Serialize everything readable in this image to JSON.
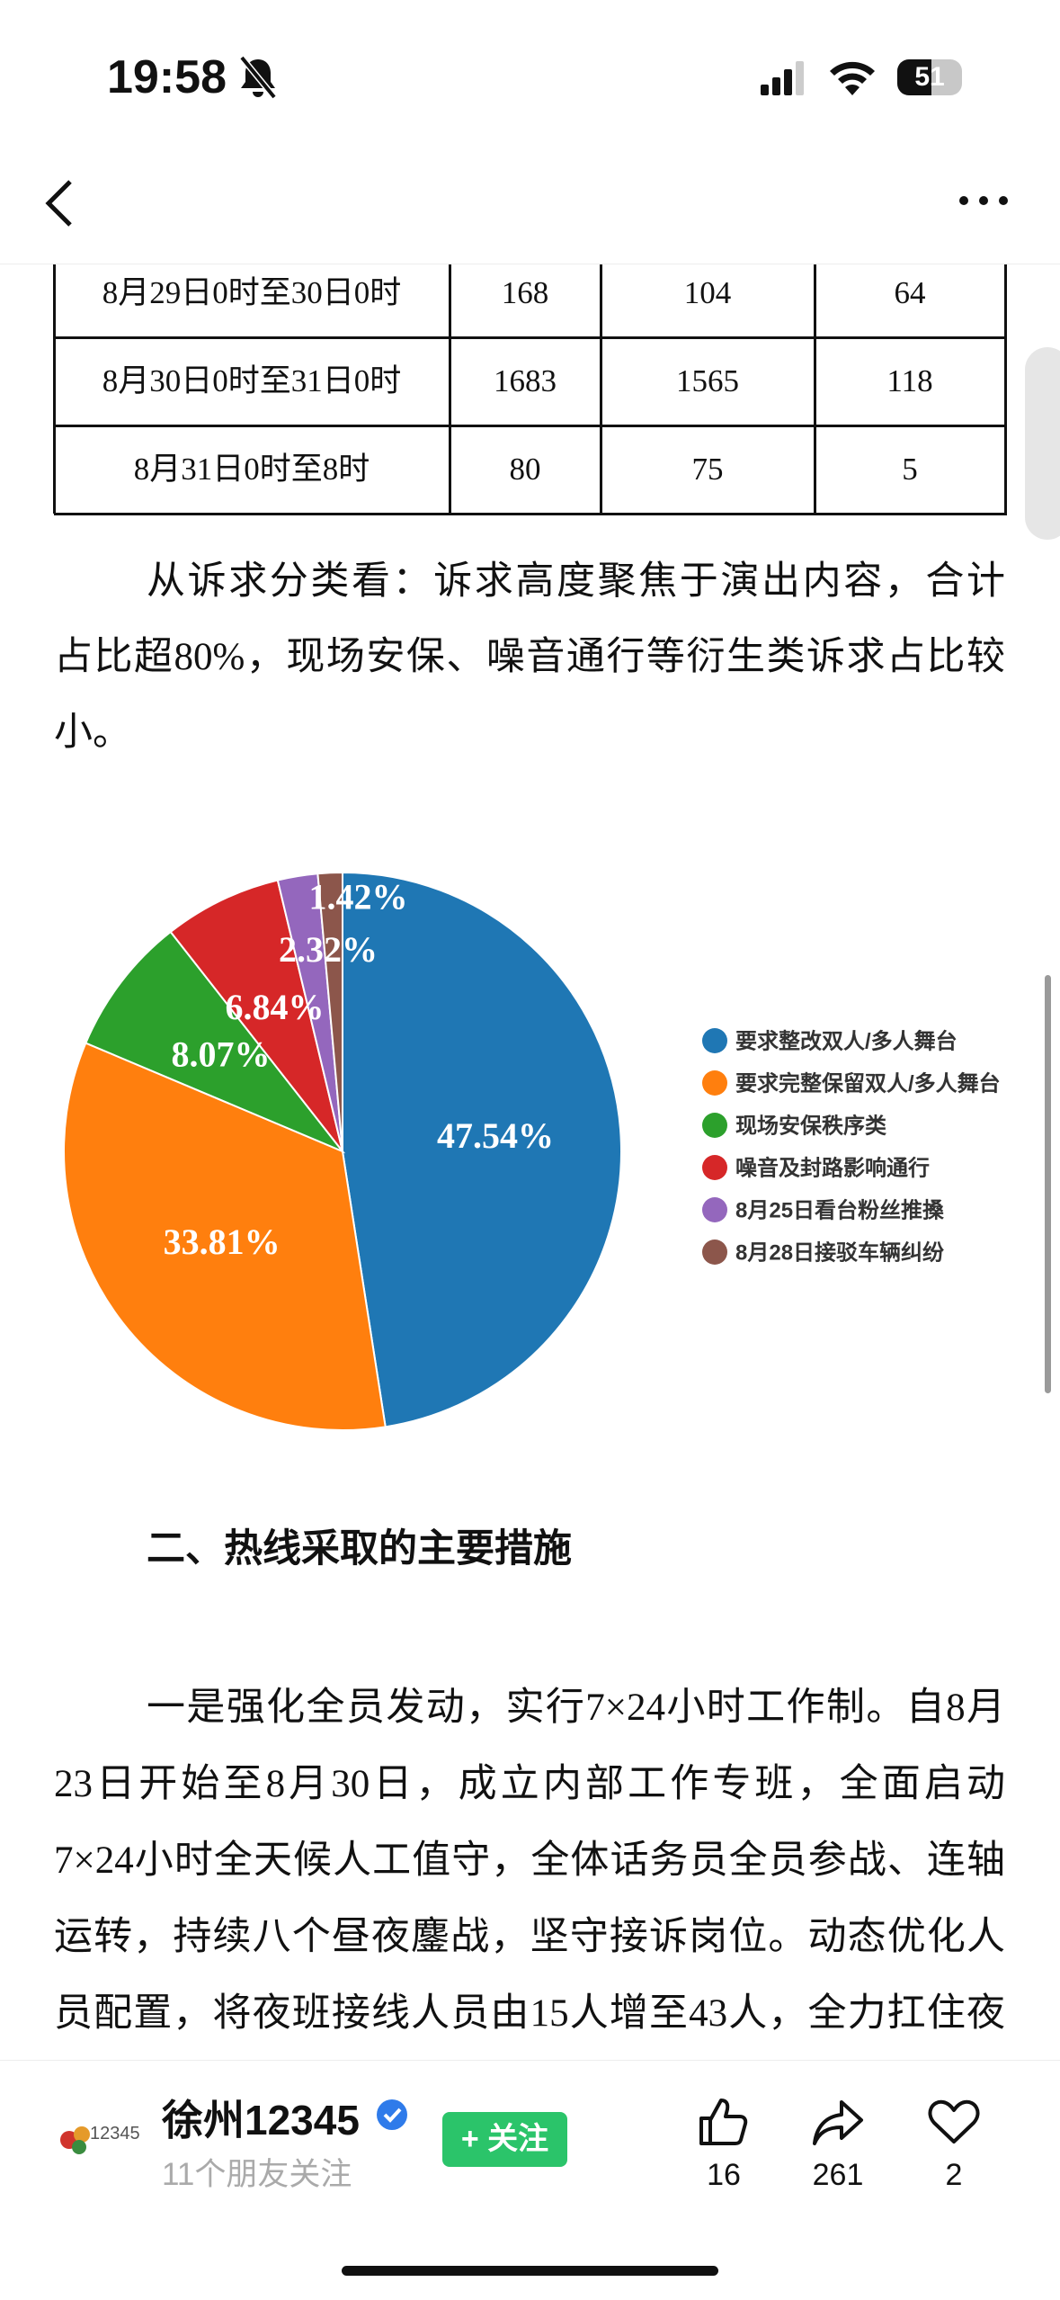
{
  "status_bar": {
    "time": "19:58",
    "battery": "51"
  },
  "table": {
    "rows": [
      [
        "8月29日0时至30日0时",
        "168",
        "104",
        "64"
      ],
      [
        "8月30日0时至31日0时",
        "1683",
        "1565",
        "118"
      ],
      [
        "8月31日0时至8时",
        "80",
        "75",
        "5"
      ]
    ]
  },
  "paragraph_1": [
    "从诉求分类看：诉求高度聚焦于演出内容，合计",
    "占比超80%，现场安保、噪音通行等衍生类诉求占比较",
    "小。"
  ],
  "chart": {
    "type": "pie",
    "categories": [
      "要求整改双人/多人舞台",
      "要求完整保留双人/多人舞台",
      "现场安保秩序类",
      "噪音及封路影响通行",
      "8月25日看台粉丝推搡",
      "8月28日接驳车辆纠纷"
    ],
    "values": [
      47.54,
      33.81,
      8.07,
      6.84,
      2.32,
      1.42
    ],
    "value_labels": [
      "47.54%",
      "33.81%",
      "8.07%",
      "6.84%",
      "2.32%",
      "1.42%"
    ],
    "colors": [
      "#1f77b4",
      "#ff7f0e",
      "#2ca02c",
      "#d62728",
      "#9467bd",
      "#8c564b"
    ]
  },
  "heading": "二、热线采取的主要措施",
  "paragraph_2": [
    "一是强化全员发动，实行7×24小时工作制。自8月",
    "23日开始至8月30日，成立内部工作专班，全面启动",
    "7×24小时全天候人工值守，全体话务员全员参战、连轴",
    "运转，持续八个昼夜鏖战，坚守接诉岗位。动态优化人",
    "员配置，将夜班接线人员由15人增至43人，全力扛住夜"
  ],
  "footer": {
    "logo": "12345",
    "account": "徐州12345",
    "followers": "11个朋友关注",
    "follow_button": "+ 关注",
    "likes": "16",
    "shares": "261",
    "favorites": "2"
  }
}
